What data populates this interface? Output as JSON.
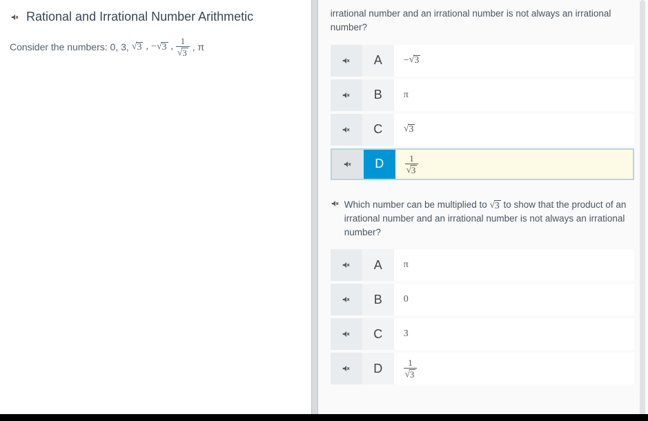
{
  "left": {
    "title": "Rational and Irrational Number Arithmetic",
    "prompt_prefix": "Consider the numbers: 0, 3, ",
    "prompt_suffix": ", π"
  },
  "right": {
    "q1": {
      "text": "irrational number and an irrational number is not always an irrational number?",
      "options": [
        {
          "letter": "A",
          "type": "negsqrt",
          "val": "3",
          "selected": false
        },
        {
          "letter": "B",
          "type": "plain",
          "val": "π",
          "selected": false
        },
        {
          "letter": "C",
          "type": "sqrt",
          "val": "3",
          "selected": false
        },
        {
          "letter": "D",
          "type": "frac-over-sqrt",
          "num": "1",
          "den": "3",
          "selected": true
        }
      ]
    },
    "q2": {
      "lead_prefix": "Which number can be multiplied to ",
      "lead_sqrt": "3",
      "lead_suffix": " to show that the product of an irrational number and an irrational number is not always an irrational number?",
      "options": [
        {
          "letter": "A",
          "type": "plain",
          "val": "π",
          "selected": false
        },
        {
          "letter": "B",
          "type": "plain",
          "val": "0",
          "selected": false
        },
        {
          "letter": "C",
          "type": "plain",
          "val": "3",
          "selected": false
        },
        {
          "letter": "D",
          "type": "frac-over-sqrt",
          "num": "1",
          "den": "3",
          "selected": false
        }
      ]
    }
  },
  "colors": {
    "selected_bg": "#fdfbe6",
    "selected_letter_bg": "#0096d6",
    "divider": "#d7dbde"
  }
}
